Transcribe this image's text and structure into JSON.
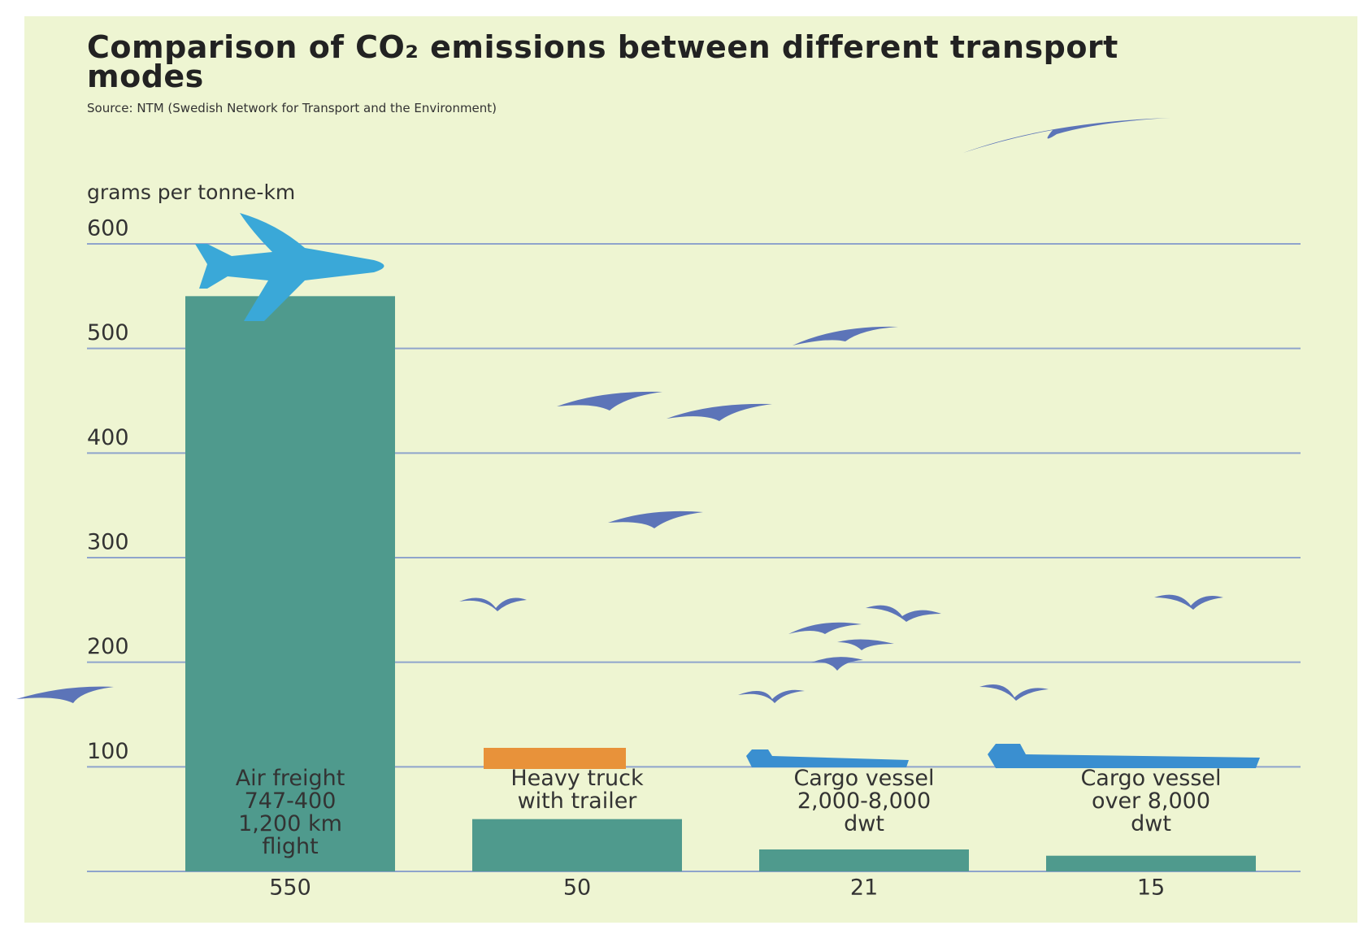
{
  "chart_data": {
    "type": "bar",
    "title": "Comparison of CO₂ emissions between different transport modes",
    "subtitle": "Source: NTM (Swedish Network for Transport and the Environment)",
    "y_label": "grams per tonne-km",
    "categories": [
      "Air freight\n747-400\n1,200 km\nflight",
      "Heavy truck\nwith trailer",
      "Cargo vessel\n2,000-8,000\ndwt",
      "Cargo vessel\nover 8,000\ndwt"
    ],
    "values": [
      550,
      50,
      21,
      15
    ],
    "color": "#4f9a8d",
    "ylim": [
      0,
      600
    ],
    "yticks": [
      100,
      200,
      300,
      400,
      500,
      600
    ],
    "grid": true
  }
}
